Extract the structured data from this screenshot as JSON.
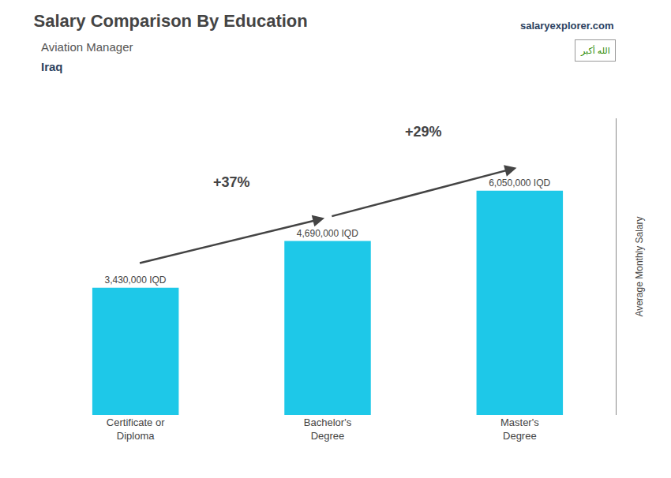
{
  "chart_data": {
    "type": "bar",
    "title": "Salary Comparison By Education",
    "subtitle": "Aviation Manager",
    "categories": [
      "Certificate or\nDiploma",
      "Bachelor's\nDegree",
      "Master's\nDegree"
    ],
    "values": [
      3430000,
      4690000,
      6050000
    ],
    "value_labels": [
      "3,430,000 IQD",
      "4,690,000 IQD",
      "6,050,000 IQD"
    ],
    "data_labels": true,
    "color": "#1EC8E8",
    "ylabel": "Average Monthly Salary",
    "ylim": [
      0,
      8000000
    ],
    "grid": false,
    "tick_labels": "x",
    "annotations": [
      {
        "text": "+37%",
        "from": "Certificate or\nDiploma",
        "to": "Bachelor's\nDegree"
      },
      {
        "text": "+29%",
        "from": "Bachelor's\nDegree",
        "to": "Master's\nDegree"
      },
      {
        "text": "Iraq"
      },
      {
        "text": "salaryexplorer.com"
      },
      {
        "text": "الله أكبر"
      }
    ]
  }
}
